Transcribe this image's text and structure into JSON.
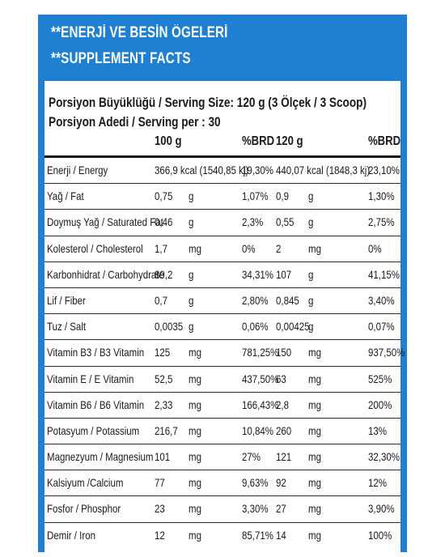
{
  "header": {
    "line1": "**ENERJİ VE BESİN ÖGELERİ",
    "line2": "**SUPPLEMENT FACTS"
  },
  "serving": {
    "size": "Porsiyon Büyüklüğü / Serving Size: 120 g (3 Ölçek / 3 Scoop)",
    "per": "Porsiyon Adedi / Serving per : 30"
  },
  "columns": {
    "amount1": "100 g",
    "brd1": "%BRD",
    "amount2": "120 g",
    "brd2": "%BRD"
  },
  "rows": [
    {
      "name": "Enerji / Energy",
      "v1": "366,9 kcal (1540,85 kj)",
      "u1": "",
      "p1": "19,30%",
      "v2": "440,07 kcal (1848,3 kj)",
      "u2": "",
      "p2": "23,10%"
    },
    {
      "name": "Yağ / Fat",
      "v1": "0,75",
      "u1": "g",
      "p1": "1,07%",
      "v2": "0,9",
      "u2": "g",
      "p2": "1,30%"
    },
    {
      "name": "Doymuş Yağ / Saturated Fat",
      "v1": "0,46",
      "u1": "g",
      "p1": "2,3%",
      "v2": "0,55",
      "u2": "g",
      "p2": "2,75%"
    },
    {
      "name": "Kolesterol / Cholesterol",
      "v1": "1,7",
      "u1": "mg",
      "p1": "0%",
      "v2": "2",
      "u2": "mg",
      "p2": "0%"
    },
    {
      "name": "Karbonhidrat / Carbohydrate",
      "v1": "89,2",
      "u1": "g",
      "p1": "34,31%",
      "v2": "107",
      "u2": "g",
      "p2": "41,15%"
    },
    {
      "name": "Lif / Fiber",
      "v1": "0,7",
      "u1": "g",
      "p1": "2,80%",
      "v2": "0,845",
      "u2": "g",
      "p2": "3,40%"
    },
    {
      "name": "Tuz / Salt",
      "v1": "0,0035",
      "u1": "g",
      "p1": "0,06%",
      "v2": "0,00425",
      "u2": "g",
      "p2": "0,07%"
    },
    {
      "name": "Vitamin B3 / B3 Vitamin",
      "v1": "125",
      "u1": "mg",
      "p1": "781,25%",
      "v2": "150",
      "u2": "mg",
      "p2": "937,50%"
    },
    {
      "name": "Vitamin E / E Vitamin",
      "v1": "52,5",
      "u1": "mg",
      "p1": "437,50%",
      "v2": "63",
      "u2": "mg",
      "p2": "525%"
    },
    {
      "name": "Vitamin B6 / B6 Vitamin",
      "v1": "2,33",
      "u1": "mg",
      "p1": "166,43%",
      "v2": "2,8",
      "u2": "mg",
      "p2": "200%"
    },
    {
      "name": "Potasyum / Potassium",
      "v1": "216,7",
      "u1": "mg",
      "p1": "10,84%",
      "v2": "260",
      "u2": "mg",
      "p2": "13%"
    },
    {
      "name": "Magnezyum / Magnesium",
      "v1": "101",
      "u1": "mg",
      "p1": "27%",
      "v2": "121",
      "u2": "mg",
      "p2": "32,30%"
    },
    {
      "name": "Kalsiyum /Calcium",
      "v1": "77",
      "u1": "mg",
      "p1": "9,63%",
      "v2": "92",
      "u2": "mg",
      "p2": "12%"
    },
    {
      "name": "Fosfor / Phosphor",
      "v1": "23",
      "u1": "mg",
      "p1": "3,30%",
      "v2": "27",
      "u2": "mg",
      "p2": "3,90%"
    },
    {
      "name": "Demir / Iron",
      "v1": "12",
      "u1": "mg",
      "p1": "85,71%",
      "v2": "14",
      "u2": "mg",
      "p2": "100%"
    }
  ],
  "colors": {
    "frame": "#1f7fd0",
    "text": "#1a1a1a"
  }
}
